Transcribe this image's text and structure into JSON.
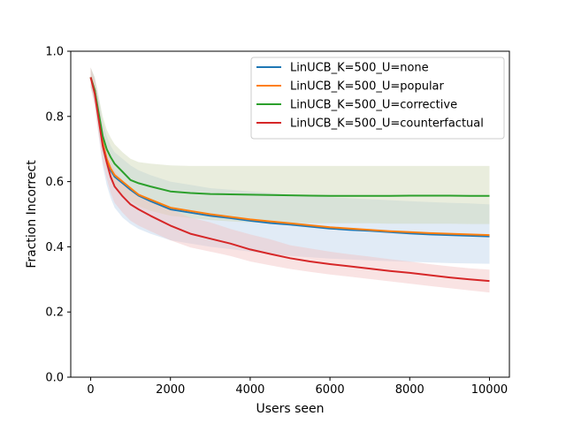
{
  "chart_data": {
    "type": "line",
    "title": "",
    "xlabel": "Users seen",
    "ylabel": "Fraction Incorrect",
    "xlim": [
      -500,
      10500
    ],
    "ylim": [
      0.0,
      1.0
    ],
    "xticks": [
      0,
      2000,
      4000,
      6000,
      8000,
      10000
    ],
    "yticks": [
      0.0,
      0.2,
      0.4,
      0.6,
      0.8,
      1.0
    ],
    "xtick_labels": [
      "0",
      "2000",
      "4000",
      "6000",
      "8000",
      "10000"
    ],
    "ytick_labels": [
      "0.0",
      "0.2",
      "0.4",
      "0.6",
      "0.8",
      "1.0"
    ],
    "grid": false,
    "legend_position": "top-right",
    "x": [
      0,
      100,
      200,
      300,
      400,
      500,
      600,
      800,
      1000,
      1200,
      1500,
      2000,
      2500,
      3000,
      3500,
      4000,
      4500,
      5000,
      5500,
      6000,
      6500,
      7000,
      7500,
      8000,
      8500,
      9000,
      9500,
      10000
    ],
    "series": [
      {
        "name": "LinUCB_K=500_U=none",
        "color": "#1f77b4",
        "values": [
          0.92,
          0.88,
          0.8,
          0.72,
          0.67,
          0.635,
          0.615,
          0.595,
          0.575,
          0.557,
          0.54,
          0.515,
          0.505,
          0.495,
          0.488,
          0.48,
          0.473,
          0.468,
          0.462,
          0.456,
          0.452,
          0.449,
          0.445,
          0.441,
          0.438,
          0.436,
          0.434,
          0.432
        ],
        "lower": [
          0.89,
          0.84,
          0.74,
          0.65,
          0.59,
          0.55,
          0.52,
          0.49,
          0.47,
          0.455,
          0.44,
          0.42,
          0.41,
          0.4,
          0.393,
          0.385,
          0.378,
          0.372,
          0.368,
          0.364,
          0.361,
          0.358,
          0.356,
          0.354,
          0.352,
          0.35,
          0.349,
          0.348
        ],
        "upper": [
          0.95,
          0.92,
          0.86,
          0.78,
          0.74,
          0.71,
          0.69,
          0.67,
          0.65,
          0.635,
          0.62,
          0.6,
          0.59,
          0.58,
          0.575,
          0.57,
          0.565,
          0.56,
          0.556,
          0.552,
          0.549,
          0.546,
          0.543,
          0.54,
          0.537,
          0.535,
          0.533,
          0.53
        ],
        "band_color": "#bcd3ea"
      },
      {
        "name": "LinUCB_K=500_U=popular",
        "color": "#ff7f0e",
        "values": [
          0.92,
          0.88,
          0.8,
          0.72,
          0.67,
          0.64,
          0.62,
          0.6,
          0.58,
          0.56,
          0.545,
          0.52,
          0.51,
          0.5,
          0.492,
          0.484,
          0.478,
          0.472,
          0.466,
          0.46,
          0.456,
          0.452,
          0.448,
          0.445,
          0.442,
          0.44,
          0.438,
          0.436
        ],
        "lower": [],
        "upper": [],
        "band_color": ""
      },
      {
        "name": "LinUCB_K=500_U=corrective",
        "color": "#2ca02c",
        "values": [
          0.92,
          0.88,
          0.81,
          0.74,
          0.7,
          0.675,
          0.655,
          0.63,
          0.605,
          0.595,
          0.585,
          0.57,
          0.565,
          0.562,
          0.561,
          0.56,
          0.559,
          0.558,
          0.557,
          0.556,
          0.556,
          0.556,
          0.556,
          0.557,
          0.557,
          0.557,
          0.556,
          0.556
        ],
        "lower": [
          0.89,
          0.85,
          0.76,
          0.69,
          0.64,
          0.61,
          0.59,
          0.56,
          0.54,
          0.525,
          0.51,
          0.495,
          0.488,
          0.482,
          0.478,
          0.475,
          0.474,
          0.473,
          0.472,
          0.472,
          0.472,
          0.472,
          0.471,
          0.471,
          0.471,
          0.471,
          0.47,
          0.47
        ],
        "upper": [
          0.95,
          0.92,
          0.86,
          0.8,
          0.76,
          0.735,
          0.715,
          0.69,
          0.67,
          0.66,
          0.655,
          0.65,
          0.648,
          0.648,
          0.648,
          0.648,
          0.648,
          0.648,
          0.648,
          0.648,
          0.648,
          0.648,
          0.648,
          0.648,
          0.648,
          0.648,
          0.648,
          0.648
        ],
        "band_color": "#cfd8b4"
      },
      {
        "name": "LinUCB_K=500_U=counterfactual",
        "color": "#d62728",
        "values": [
          0.92,
          0.87,
          0.79,
          0.71,
          0.66,
          0.615,
          0.585,
          0.555,
          0.53,
          0.515,
          0.495,
          0.465,
          0.44,
          0.425,
          0.41,
          0.392,
          0.378,
          0.365,
          0.355,
          0.347,
          0.34,
          0.333,
          0.326,
          0.32,
          0.313,
          0.306,
          0.3,
          0.295
        ],
        "lower": [
          0.89,
          0.83,
          0.74,
          0.66,
          0.61,
          0.565,
          0.535,
          0.505,
          0.48,
          0.465,
          0.448,
          0.42,
          0.398,
          0.385,
          0.372,
          0.355,
          0.343,
          0.332,
          0.323,
          0.315,
          0.308,
          0.301,
          0.294,
          0.287,
          0.28,
          0.273,
          0.266,
          0.26
        ],
        "upper": [
          0.95,
          0.91,
          0.84,
          0.76,
          0.71,
          0.665,
          0.635,
          0.605,
          0.58,
          0.565,
          0.545,
          0.515,
          0.49,
          0.475,
          0.455,
          0.438,
          0.423,
          0.405,
          0.395,
          0.385,
          0.377,
          0.37,
          0.362,
          0.355,
          0.347,
          0.34,
          0.334,
          0.33
        ],
        "band_color": "#f2c2c2"
      }
    ]
  }
}
